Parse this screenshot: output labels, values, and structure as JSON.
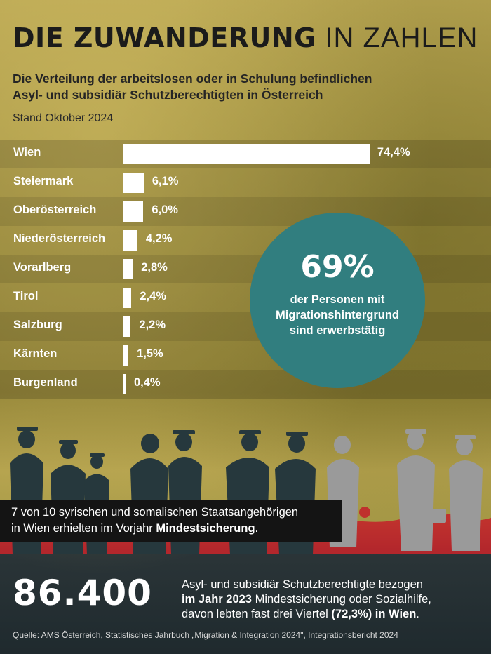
{
  "header": {
    "title_bold": "DIE ZUWANDERUNG",
    "title_light": "IN ZAHLEN",
    "subtitle_line1": "Die Verteilung der arbeitslosen oder in Schulung befindlichen",
    "subtitle_line2": "Asyl- und subsidiär Schutzberechtigten in Österreich",
    "stand": "Stand Oktober 2024"
  },
  "chart_data": {
    "type": "bar",
    "orientation": "horizontal",
    "categories": [
      "Wien",
      "Steiermark",
      "Oberösterreich",
      "Niederösterreich",
      "Vorarlberg",
      "Tirol",
      "Salzburg",
      "Kärnten",
      "Burgenland"
    ],
    "values": [
      74.4,
      6.1,
      6.0,
      4.2,
      2.8,
      2.4,
      2.2,
      1.5,
      0.4
    ],
    "labels": [
      "74,4%",
      "6,1%",
      "6,0%",
      "4,2%",
      "2,8%",
      "2,4%",
      "2,2%",
      "1,5%",
      "0,4%"
    ],
    "xlim": [
      0,
      100
    ],
    "grid": false,
    "bar_color": "#ffffff"
  },
  "circle": {
    "value": "69%",
    "line1": "der Personen mit",
    "line2": "Migrationshintergrund",
    "line3": "sind erwerbstätig",
    "color": "#317e7f"
  },
  "callout": {
    "line1": "7 von 10 syrischen und somalischen Staatsangehörigen",
    "line2_pre": "in Wien erhielten im Vorjahr ",
    "line2_bold": "Mindestsicherung",
    "line2_post": "."
  },
  "bottom": {
    "number": "86.400",
    "line1": "Asyl- und subsidiär Schutzberechtigte bezogen",
    "line2_bold": "im Jahr 2023",
    "line2_post": " Mindestsicherung oder Sozialhilfe,",
    "line3_pre": "davon lebten fast drei Viertel ",
    "line3_bold": "(72,3%) in Wien",
    "line3_post": "."
  },
  "source": "Quelle: AMS Österreich, Statistisches Jahrbuch „Migration & Integration 2024\", Integrationsbericht 2024",
  "colors": {
    "accent_red": "#c2262b",
    "teal": "#317e7f",
    "silhouette_dark": "#26383d",
    "silhouette_grey": "#9a9a9a"
  }
}
